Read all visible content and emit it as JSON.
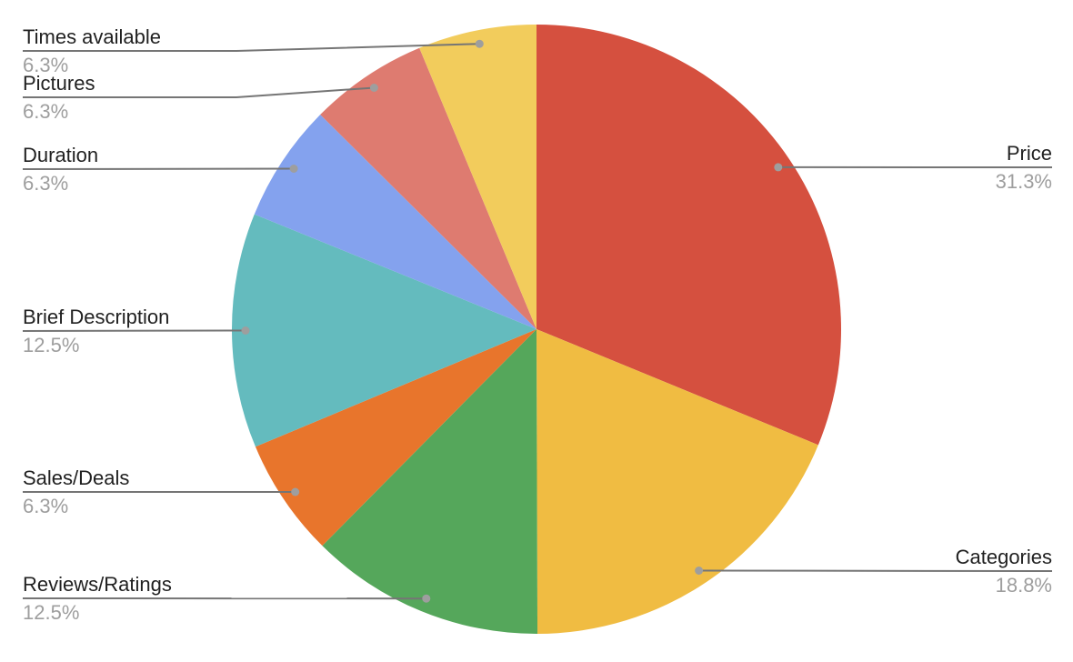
{
  "chart_data": {
    "type": "pie",
    "title": "",
    "legend_position": "outside-labels-with-leader-lines",
    "direction": "clockwise",
    "start_angle_deg": 0,
    "background": "#FFFFFF",
    "leader_line_color": "#757575",
    "leader_dot_color": "#9E9E9E",
    "label_text_color": "#212121",
    "pct_text_color": "#9E9E9E",
    "slices": [
      {
        "label": "Price",
        "pct": "31.3%",
        "value": 31.3,
        "color": "#D5503F"
      },
      {
        "label": "Categories",
        "pct": "18.8%",
        "value": 18.8,
        "color": "#F0BC42"
      },
      {
        "label": "Reviews/Ratings",
        "pct": "12.5%",
        "value": 12.5,
        "color": "#55A75B"
      },
      {
        "label": "Sales/Deals",
        "pct": "6.3%",
        "value": 6.3,
        "color": "#E8752C"
      },
      {
        "label": "Brief Description",
        "pct": "12.5%",
        "value": 12.5,
        "color": "#64BBBE"
      },
      {
        "label": "Duration",
        "pct": "6.3%",
        "value": 6.3,
        "color": "#84A2EE"
      },
      {
        "label": "Pictures",
        "pct": "6.3%",
        "value": 6.3,
        "color": "#DE7B70"
      },
      {
        "label": "Times available",
        "pct": "6.3%",
        "value": 6.3,
        "color": "#F2CC5C"
      }
    ]
  }
}
